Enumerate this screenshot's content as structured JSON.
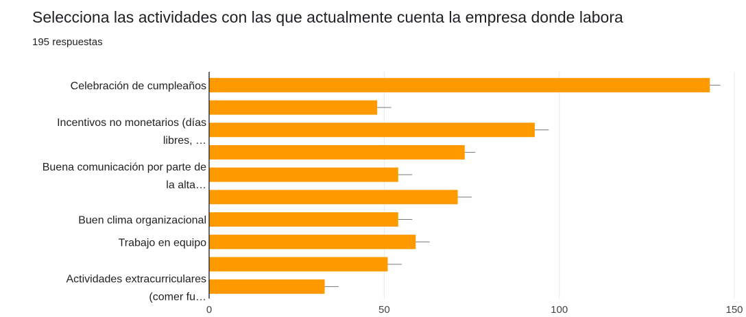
{
  "title": "Selecciona las actividades con las que actualmente cuenta la empresa donde labora",
  "subtitle": "195 respuestas",
  "chart_data": {
    "type": "bar",
    "orientation": "horizontal",
    "bar_color": "#ff9900",
    "grid": true,
    "xlim": [
      0,
      150
    ],
    "x_ticks": [
      "0",
      "50",
      "100",
      "150"
    ],
    "categories": [
      [
        "Celebración de cumpleaños"
      ],
      [],
      [
        "Incentivos no monetarios (días",
        "libres, …"
      ],
      [],
      [
        "Buena comunicación por parte de",
        "la alta…"
      ],
      [],
      [
        "Buen clima organizacional"
      ],
      [
        "Trabajo en equipo"
      ],
      [],
      [
        "Actividades extracurriculares",
        "(comer fu…"
      ]
    ],
    "values": [
      143,
      48,
      93,
      73,
      54,
      71,
      54,
      59,
      51,
      33
    ],
    "error_upper": [
      146,
      52,
      97,
      76,
      58,
      75,
      58,
      63,
      55,
      37
    ]
  }
}
